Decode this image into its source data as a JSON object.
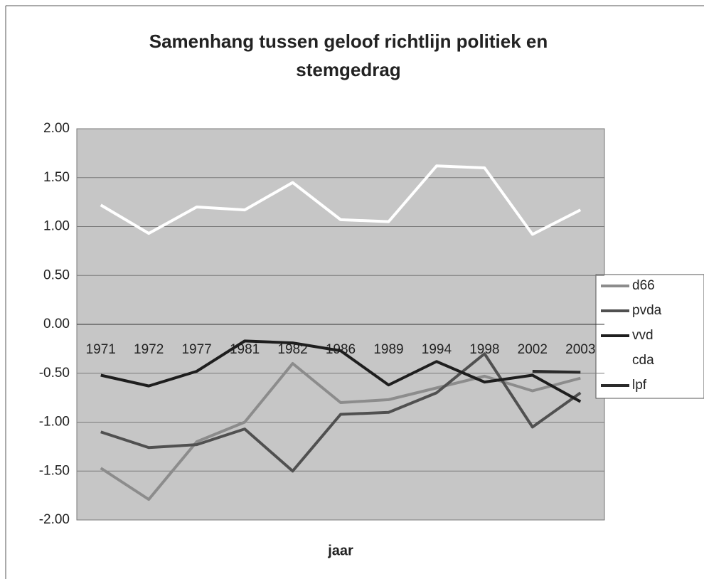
{
  "chart_data": {
    "type": "line",
    "title": "Samenhang tussen geloof richtlijn politiek en stemgedrag",
    "x_label": "jaar",
    "categories": [
      "1971",
      "1972",
      "1977",
      "1981",
      "1982",
      "1986",
      "1989",
      "1994",
      "1998",
      "2002",
      "2003"
    ],
    "series": [
      {
        "name": "d66",
        "color": "#8c8c8c",
        "values": [
          -1.47,
          -1.79,
          -1.2,
          -1.0,
          -0.4,
          -0.8,
          -0.77,
          -0.65,
          -0.53,
          -0.68,
          -0.55
        ]
      },
      {
        "name": "pvda",
        "color": "#505050",
        "values": [
          -1.1,
          -1.26,
          -1.23,
          -1.07,
          -1.5,
          -0.92,
          -0.9,
          -0.7,
          -0.3,
          -1.05,
          -0.7
        ]
      },
      {
        "name": "vvd",
        "color": "#1e1e1e",
        "values": [
          -0.52,
          -0.63,
          -0.48,
          -0.17,
          -0.19,
          -0.27,
          -0.62,
          -0.38,
          -0.59,
          -0.52,
          -0.79
        ]
      },
      {
        "name": "cda",
        "color": "#ffffff",
        "values": [
          1.22,
          0.93,
          1.2,
          1.17,
          1.45,
          1.07,
          1.05,
          1.62,
          1.6,
          0.92,
          1.17
        ]
      },
      {
        "name": "lpf",
        "color": "#2a2a2a",
        "values": [
          null,
          null,
          null,
          null,
          null,
          null,
          null,
          null,
          null,
          -0.48,
          -0.49
        ]
      }
    ],
    "ylim": [
      -2,
      2
    ],
    "yticks": [
      {
        "value": -2,
        "label": "-2.00"
      },
      {
        "value": -1.5,
        "label": "-1.50"
      },
      {
        "value": -1,
        "label": "-1.00"
      },
      {
        "value": -0.5,
        "label": "-0.50"
      },
      {
        "value": 0,
        "label": "0.00"
      },
      {
        "value": 0.5,
        "label": "0.50"
      },
      {
        "value": 1,
        "label": "1.00"
      },
      {
        "value": 1.5,
        "label": "1.50"
      },
      {
        "value": 2,
        "label": "2.00"
      }
    ],
    "grid": true,
    "legend": "right"
  }
}
